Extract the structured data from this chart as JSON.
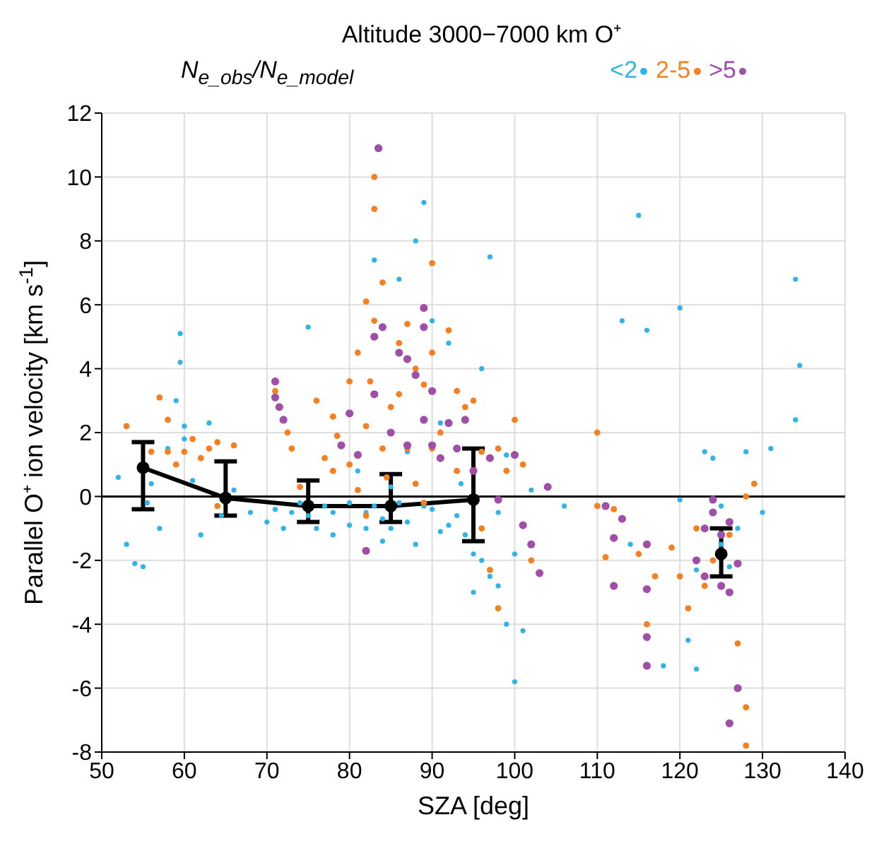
{
  "chart_data": {
    "type": "scatter",
    "title": "Altitude 3000−7000 km O⁺",
    "xlabel": "SZA [deg]",
    "ylabel": "Parallel O⁺ ion velocity [km s$^{-1}$]",
    "legend_title": "N$_{e_obs}$/N$_{e_model}$",
    "xlim": [
      50,
      140
    ],
    "xticks": [
      50,
      60,
      70,
      80,
      90,
      100,
      110,
      120,
      130,
      140
    ],
    "ylim": [
      -8,
      12
    ],
    "yticks": [
      -8,
      -6,
      -4,
      -2,
      0,
      2,
      4,
      6,
      8,
      10,
      12
    ],
    "grid": true,
    "legend": "top right",
    "marker": "circle",
    "ref_lines": [
      {
        "axis": "y",
        "value": 0,
        "color": "#000000"
      }
    ],
    "series": [
      {
        "name": "<2",
        "color": "#2eb4e8",
        "x": [
          52,
          53,
          54,
          55,
          55.5,
          56,
          57,
          58,
          59,
          59.5,
          59.5,
          60,
          60,
          61,
          62,
          63,
          64.5,
          66,
          68,
          70,
          71,
          72,
          73,
          74,
          75,
          75,
          76,
          77,
          78,
          78,
          80,
          80,
          81,
          82,
          82,
          83,
          83,
          84,
          84,
          85,
          85,
          86,
          86,
          87,
          87,
          88,
          88,
          89,
          89,
          90,
          90,
          91,
          91,
          92,
          92,
          93.5,
          93,
          94,
          95,
          95,
          96,
          96,
          97,
          97,
          98,
          98,
          99,
          99,
          100,
          100,
          101,
          102,
          106,
          113,
          115,
          114,
          116,
          118,
          120,
          120,
          121,
          122,
          122,
          123,
          124,
          125,
          125,
          126,
          127,
          128,
          130,
          131,
          134,
          134.5,
          134
        ],
        "values": [
          0.6,
          -1.5,
          -2.1,
          -2.2,
          -0.2,
          0.4,
          -1.0,
          1.5,
          3.0,
          5.1,
          4.2,
          2.2,
          1.8,
          0.5,
          -1.2,
          2.3,
          -0.6,
          0.2,
          -0.5,
          -0.8,
          -0.4,
          -1.0,
          -0.5,
          -0.2,
          5.3,
          -0.6,
          -1.0,
          -0.3,
          -0.5,
          -1.2,
          -0.2,
          -0.9,
          0.8,
          -0.5,
          -1.0,
          7.4,
          -0.3,
          -1.4,
          -0.7,
          -1.0,
          0.3,
          -0.2,
          6.8,
          -0.8,
          1.4,
          8.0,
          -1.5,
          -0.3,
          9.2,
          5.5,
          -0.4,
          2.3,
          -1.1,
          4.8,
          -0.9,
          0.4,
          -0.6,
          -1.2,
          -1.8,
          -3.0,
          4.0,
          -2.0,
          -2.5,
          7.5,
          -2.8,
          -0.5,
          1.3,
          -4.0,
          -1.8,
          -5.8,
          -4.2,
          0.2,
          -0.3,
          5.5,
          8.8,
          -1.5,
          5.2,
          -5.3,
          -0.1,
          5.9,
          -4.5,
          -2.3,
          -5.4,
          1.4,
          1.2,
          -0.3,
          -1.5,
          -2.2,
          -1.0,
          1.4,
          -0.5,
          1.5,
          6.8,
          4.1,
          2.4
        ]
      },
      {
        "name": "2-5",
        "color": "#f67f20",
        "x": [
          53,
          56,
          57,
          58,
          58,
          59,
          60,
          61,
          62,
          63,
          64,
          64,
          66,
          71,
          72.5,
          73,
          74,
          76,
          77,
          78,
          78,
          78.5,
          80,
          80,
          81,
          81,
          82,
          82,
          82,
          83,
          83,
          83,
          82.5,
          84,
          84,
          84.5,
          85,
          85,
          86,
          86,
          87,
          87,
          88,
          88,
          89,
          89,
          90,
          90,
          90,
          91,
          92,
          93,
          93,
          94,
          95,
          96,
          96,
          97,
          98,
          98,
          99,
          100,
          101,
          102,
          110,
          110,
          111,
          112,
          115,
          116,
          117,
          119,
          120,
          121,
          122,
          123,
          124,
          126,
          127,
          128,
          128,
          129,
          128
        ],
        "values": [
          2.2,
          1.4,
          3.1,
          1.4,
          2.4,
          1.0,
          1.4,
          1.8,
          1.2,
          1.5,
          1.7,
          -0.3,
          1.6,
          3.3,
          2.0,
          1.5,
          0.3,
          3.0,
          1.2,
          2.5,
          0.8,
          1.9,
          3.6,
          1.0,
          4.5,
          0.2,
          6.1,
          2.2,
          -0.6,
          9.0,
          10.0,
          5.5,
          3.6,
          6.7,
          1.5,
          0.6,
          2.8,
          -0.4,
          4.8,
          3.2,
          5.4,
          1.5,
          4.0,
          0.4,
          3.5,
          -0.2,
          7.3,
          4.5,
          1.5,
          2.0,
          5.2,
          3.3,
          0.8,
          2.8,
          3.0,
          1.4,
          -1.0,
          -2.3,
          1.5,
          -3.5,
          0.8,
          2.4,
          1.0,
          -2.0,
          2.0,
          -0.3,
          -1.9,
          -0.4,
          -1.8,
          -4.0,
          -2.5,
          -1.6,
          -2.5,
          -3.5,
          -1.0,
          -2.8,
          -2.0,
          -1.2,
          -4.6,
          -6.6,
          -7.8,
          0.4,
          0.0
        ]
      },
      {
        "name": ">5",
        "color": "#a04fa8",
        "x": [
          71,
          71,
          71.5,
          72,
          79,
          80,
          81,
          82,
          83,
          83,
          83.5,
          84,
          85,
          86,
          87,
          87,
          88,
          89,
          89,
          89,
          90,
          90,
          91,
          92,
          93,
          94,
          95,
          97,
          98,
          100,
          101,
          102,
          103,
          104,
          111,
          112,
          112,
          113,
          116,
          116,
          116,
          116,
          122,
          123,
          123,
          124,
          124,
          125,
          125,
          126,
          126,
          127,
          127,
          126
        ],
        "values": [
          3.6,
          3.1,
          2.8,
          2.4,
          1.6,
          2.6,
          1.3,
          -1.7,
          5.0,
          3.2,
          10.9,
          5.3,
          2.0,
          4.5,
          1.6,
          4.3,
          3.8,
          5.9,
          5.3,
          2.4,
          3.3,
          1.6,
          1.2,
          2.3,
          1.5,
          2.4,
          0.8,
          1.2,
          -0.1,
          1.3,
          -0.9,
          -1.5,
          -2.4,
          0.3,
          -0.3,
          -1.3,
          -2.8,
          -0.7,
          -1.5,
          -2.9,
          -4.4,
          -5.3,
          -2.0,
          -1.0,
          -2.5,
          -0.1,
          -0.5,
          -1.2,
          -2.8,
          -0.8,
          -3.0,
          -2.1,
          -6.0,
          -7.1
        ]
      },
      {
        "type": "line",
        "color": "#000000",
        "x": [
          55,
          65,
          75,
          85,
          95,
          110,
          125
        ],
        "values": [
          0.9,
          -0.05,
          -0.3,
          -0.3,
          -0.1,
          null,
          -1.8
        ],
        "errors": [
          [
            -0.4,
            1.7
          ],
          [
            -0.6,
            1.1
          ],
          [
            -0.8,
            0.5
          ],
          [
            -0.8,
            0.7
          ],
          [
            -1.4,
            1.5
          ],
          null,
          [
            -2.5,
            -1.0
          ]
        ]
      }
    ]
  }
}
